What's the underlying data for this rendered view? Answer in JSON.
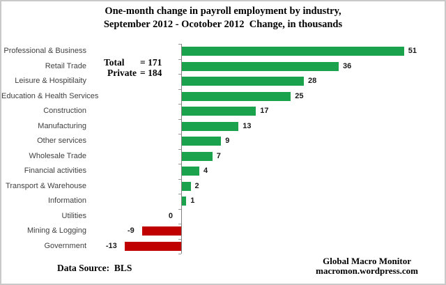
{
  "chart_data": {
    "type": "bar",
    "orientation": "horizontal",
    "title_line1": "One-month change in payroll employment by industry,",
    "title_line2": "September 2012 - Ocotober 2012  Change, in thousands",
    "categories": [
      "Professional & Business",
      "Retail Trade",
      "Leisure & Hospitilaity",
      "Education & Health Services",
      "Construction",
      "Manufacturing",
      "Other services",
      "Wholesale Trade",
      "Financial activities",
      "Transport & Warehouse",
      "Information",
      "Utilities",
      "Mining & Logging",
      "Government"
    ],
    "values": [
      51,
      36,
      28,
      25,
      17,
      13,
      9,
      7,
      4,
      2,
      1,
      0,
      -9,
      -13
    ],
    "positive_color": "#1aa24d",
    "negative_color": "#c00000",
    "xlim": [
      -20,
      60
    ],
    "grid": false,
    "legend": false,
    "annotations": {
      "total_label": "Total",
      "total_value": "= 171",
      "private_label": "Private",
      "private_value": "= 184",
      "data_source": "Data Source:  BLS",
      "credit_line1": "Global Macro Monitor",
      "credit_line2": "macromon.wordpress.com"
    }
  }
}
